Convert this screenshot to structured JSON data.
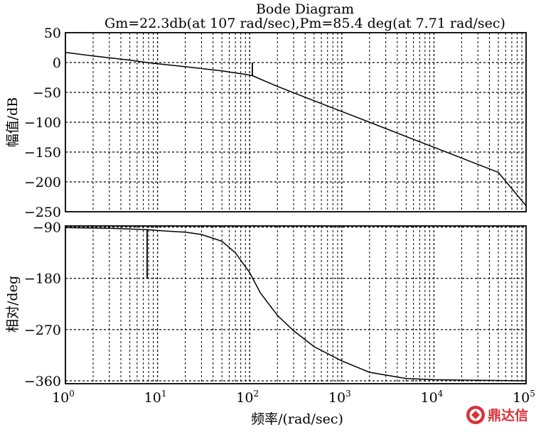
{
  "chart_data": [
    {
      "type": "line",
      "title": "Bode Diagram",
      "subtitle": "Gm=22.3db(at 107 rad/sec),Pm=85.4 deg(at 7.71 rad/sec)",
      "xlabel": "",
      "ylabel": "幅值/dB",
      "xscale": "log",
      "xlim": [
        1,
        100000
      ],
      "ylim": [
        -250,
        50
      ],
      "yticks": [
        50,
        0,
        -50,
        -100,
        -150,
        -200,
        -250
      ],
      "grid": true,
      "series": [
        {
          "x": [
            1,
            2,
            5,
            7.71,
            10,
            20,
            50,
            100,
            107,
            200,
            500,
            1000,
            2000,
            5000,
            10000,
            20000,
            50000,
            100000
          ],
          "y": [
            17,
            11,
            4,
            0,
            -2,
            -7,
            -14,
            -21,
            -22,
            -40,
            -64,
            -82,
            -100,
            -124,
            -142,
            -160,
            -184,
            -240
          ]
        }
      ],
      "annotations": [
        {
          "type": "margin-marker",
          "x": 107,
          "y_from": 0,
          "y_to": -22.3
        }
      ]
    },
    {
      "type": "line",
      "xlabel": "频率/(rad/sec)",
      "ylabel": "相对/deg",
      "xscale": "log",
      "xlim": [
        1,
        100000
      ],
      "ylim": [
        -365,
        -88
      ],
      "yticks": [
        -90,
        -180,
        -270,
        -360
      ],
      "xticks": [
        "10^0",
        "10^1",
        "10^2",
        "10^3",
        "10^4",
        "10^5"
      ],
      "grid": true,
      "series": [
        {
          "x": [
            1,
            3,
            7.71,
            10,
            20,
            30,
            50,
            70,
            100,
            130,
            200,
            300,
            500,
            1000,
            2000,
            5000,
            10000,
            100000
          ],
          "y": [
            -91,
            -92,
            -94.6,
            -96,
            -99,
            -103,
            -115,
            -135,
            -170,
            -205,
            -245,
            -272,
            -300,
            -325,
            -345,
            -356,
            -358,
            -360
          ]
        }
      ],
      "annotations": [
        {
          "type": "margin-marker",
          "x": 7.71,
          "y_from": -180,
          "y_to": -94.6
        }
      ]
    }
  ],
  "watermark": {
    "text": "鼎达信",
    "icon": "dingdaxin-logo-icon",
    "color": "#d6333a"
  }
}
